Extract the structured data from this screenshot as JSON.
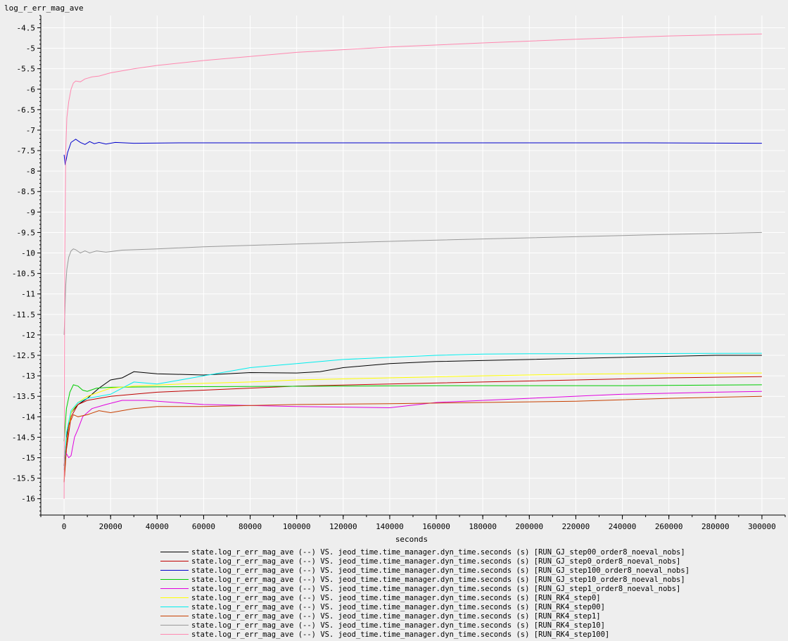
{
  "chart_data": {
    "type": "line",
    "title": "",
    "ylabel": "log_r_err_mag_ave",
    "xlabel": "seconds",
    "xlim": [
      -10000,
      310000
    ],
    "ylim": [
      -16.4,
      -4.2
    ],
    "x_ticks": [
      0,
      20000,
      40000,
      60000,
      80000,
      100000,
      120000,
      140000,
      160000,
      180000,
      200000,
      220000,
      240000,
      260000,
      280000,
      300000
    ],
    "y_ticks": [
      -4.5,
      -5,
      -5.5,
      -6,
      -6.5,
      -7,
      -7.5,
      -8,
      -8.5,
      -9,
      -9.5,
      -10,
      -10.5,
      -11,
      -11.5,
      -12,
      -12.5,
      -13,
      -13.5,
      -14,
      -14.5,
      -15,
      -15.5,
      -16
    ],
    "grid": true,
    "legend_position": "bottom",
    "series": [
      {
        "name": "state.log_r_err_mag_ave (--) VS. jeod_time.time_manager.dyn_time.seconds (s) [RUN_GJ_step00_order8_noeval_nobs]",
        "color": "#000000",
        "x": [
          0,
          1000,
          3000,
          6000,
          10000,
          15000,
          20000,
          25000,
          30000,
          40000,
          60000,
          80000,
          100000,
          110000,
          120000,
          140000,
          160000,
          200000,
          240000,
          280000,
          300000
        ],
        "y": [
          -15.2,
          -14.5,
          -13.9,
          -13.7,
          -13.55,
          -13.3,
          -13.1,
          -13.05,
          -12.9,
          -12.95,
          -12.98,
          -12.92,
          -12.93,
          -12.9,
          -12.8,
          -12.7,
          -12.65,
          -12.6,
          -12.55,
          -12.5,
          -12.5
        ]
      },
      {
        "name": "state.log_r_err_mag_ave (--) VS. jeod_time.time_manager.dyn_time.seconds (s) [RUN_GJ_step0_order8_noeval_nobs]",
        "color": "#c00000",
        "x": [
          0,
          1000,
          3000,
          6000,
          10000,
          15000,
          20000,
          30000,
          40000,
          60000,
          80000,
          100000,
          140000,
          180000,
          220000,
          260000,
          300000
        ],
        "y": [
          -15.6,
          -14.8,
          -14.0,
          -13.7,
          -13.6,
          -13.55,
          -13.5,
          -13.45,
          -13.4,
          -13.35,
          -13.3,
          -13.25,
          -13.2,
          -13.15,
          -13.1,
          -13.05,
          -13.02
        ]
      },
      {
        "name": "state.log_r_err_mag_ave (--) VS. jeod_time.time_manager.dyn_time.seconds (s) [RUN_GJ_step100_order8_noeval_nobs]",
        "color": "#0000cc",
        "x": [
          0,
          500,
          1500,
          3000,
          5000,
          7000,
          9000,
          11000,
          13000,
          15000,
          18000,
          22000,
          30000,
          50000,
          100000,
          150000,
          200000,
          250000,
          300000
        ],
        "y": [
          -7.6,
          -7.85,
          -7.55,
          -7.3,
          -7.22,
          -7.3,
          -7.35,
          -7.28,
          -7.33,
          -7.3,
          -7.34,
          -7.3,
          -7.32,
          -7.31,
          -7.31,
          -7.31,
          -7.31,
          -7.31,
          -7.32
        ]
      },
      {
        "name": "state.log_r_err_mag_ave (--) VS. jeod_time.time_manager.dyn_time.seconds (s) [RUN_GJ_step10_order8_noeval_nobs]",
        "color": "#00cc00",
        "x": [
          0,
          1000,
          2500,
          4000,
          6000,
          8000,
          10000,
          14000,
          20000,
          40000,
          80000,
          120000,
          160000,
          200000,
          240000,
          300000
        ],
        "y": [
          -14.6,
          -13.8,
          -13.4,
          -13.22,
          -13.25,
          -13.35,
          -13.38,
          -13.3,
          -13.28,
          -13.27,
          -13.26,
          -13.25,
          -13.24,
          -13.24,
          -13.24,
          -13.22
        ]
      },
      {
        "name": "state.log_r_err_mag_ave (--) VS. jeod_time.time_manager.dyn_time.seconds (s) [RUN_GJ_step1_order8_noeval_nobs]",
        "color": "#e000e0",
        "x": [
          0,
          1000,
          2000,
          3000,
          4500,
          6000,
          8000,
          12000,
          18000,
          25000,
          35000,
          60000,
          100000,
          140000,
          160000,
          200000,
          240000,
          280000,
          300000
        ],
        "y": [
          -15.0,
          -14.9,
          -15.0,
          -14.95,
          -14.5,
          -14.3,
          -14.0,
          -13.8,
          -13.7,
          -13.6,
          -13.6,
          -13.7,
          -13.75,
          -13.78,
          -13.65,
          -13.55,
          -13.45,
          -13.4,
          -13.38
        ]
      },
      {
        "name": "state.log_r_err_mag_ave (--) VS. jeod_time.time_manager.dyn_time.seconds (s) [RUN_RK4_step0]",
        "color": "#ffff00",
        "x": [
          0,
          1000,
          3000,
          6000,
          10000,
          15000,
          20000,
          30000,
          50000,
          80000,
          100000,
          140000,
          180000,
          220000,
          260000,
          300000
        ],
        "y": [
          -15.5,
          -14.6,
          -13.9,
          -13.65,
          -13.5,
          -13.4,
          -13.3,
          -13.25,
          -13.2,
          -13.15,
          -13.1,
          -13.05,
          -13.0,
          -12.96,
          -12.94,
          -12.93
        ]
      },
      {
        "name": "state.log_r_err_mag_ave (--) VS. jeod_time.time_manager.dyn_time.seconds (s) [RUN_RK4_step00]",
        "color": "#00eeee",
        "x": [
          0,
          1000,
          3000,
          6000,
          10000,
          15000,
          20000,
          25000,
          30000,
          40000,
          50000,
          60000,
          80000,
          100000,
          120000,
          140000,
          160000,
          180000,
          200000,
          240000,
          300000
        ],
        "y": [
          -15.3,
          -14.4,
          -13.85,
          -13.65,
          -13.55,
          -13.5,
          -13.45,
          -13.3,
          -13.15,
          -13.2,
          -13.1,
          -13.0,
          -12.8,
          -12.7,
          -12.6,
          -12.55,
          -12.5,
          -12.47,
          -12.46,
          -12.46,
          -12.45
        ]
      },
      {
        "name": "state.log_r_err_mag_ave (--) VS. jeod_time.time_manager.dyn_time.seconds (s) [RUN_RK4_step1]",
        "color": "#c84000",
        "x": [
          0,
          800,
          2000,
          4000,
          6000,
          10000,
          15000,
          20000,
          30000,
          40000,
          60000,
          100000,
          140000,
          180000,
          220000,
          260000,
          300000
        ],
        "y": [
          -15.6,
          -14.8,
          -14.2,
          -13.95,
          -14.0,
          -13.95,
          -13.85,
          -13.9,
          -13.8,
          -13.75,
          -13.75,
          -13.7,
          -13.68,
          -13.65,
          -13.62,
          -13.55,
          -13.5
        ]
      },
      {
        "name": "state.log_r_err_mag_ave (--) VS. jeod_time.time_manager.dyn_time.seconds (s) [RUN_RK4_step10]",
        "color": "#999999",
        "x": [
          0,
          300,
          700,
          1200,
          2000,
          3000,
          4000,
          5000,
          7000,
          9000,
          11000,
          14000,
          18000,
          25000,
          40000,
          60000,
          100000,
          150000,
          200000,
          250000,
          300000
        ],
        "y": [
          -12.0,
          -11.5,
          -10.8,
          -10.4,
          -10.1,
          -9.95,
          -9.9,
          -9.92,
          -10.0,
          -9.95,
          -10.0,
          -9.95,
          -9.98,
          -9.93,
          -9.9,
          -9.85,
          -9.78,
          -9.7,
          -9.63,
          -9.56,
          -9.5
        ]
      },
      {
        "name": "state.log_r_err_mag_ave (--) VS. jeod_time.time_manager.dyn_time.seconds (s) [RUN_RK4_step100]",
        "color": "#ff88b0",
        "x": [
          0,
          300,
          700,
          1200,
          2000,
          3000,
          4000,
          5000,
          7000,
          9000,
          12000,
          15000,
          20000,
          30000,
          40000,
          60000,
          80000,
          100000,
          140000,
          180000,
          220000,
          260000,
          300000
        ],
        "y": [
          -16.0,
          -10.0,
          -7.5,
          -6.7,
          -6.3,
          -6.0,
          -5.85,
          -5.8,
          -5.82,
          -5.75,
          -5.7,
          -5.68,
          -5.6,
          -5.5,
          -5.42,
          -5.3,
          -5.2,
          -5.1,
          -4.97,
          -4.87,
          -4.78,
          -4.7,
          -4.65
        ]
      }
    ]
  }
}
